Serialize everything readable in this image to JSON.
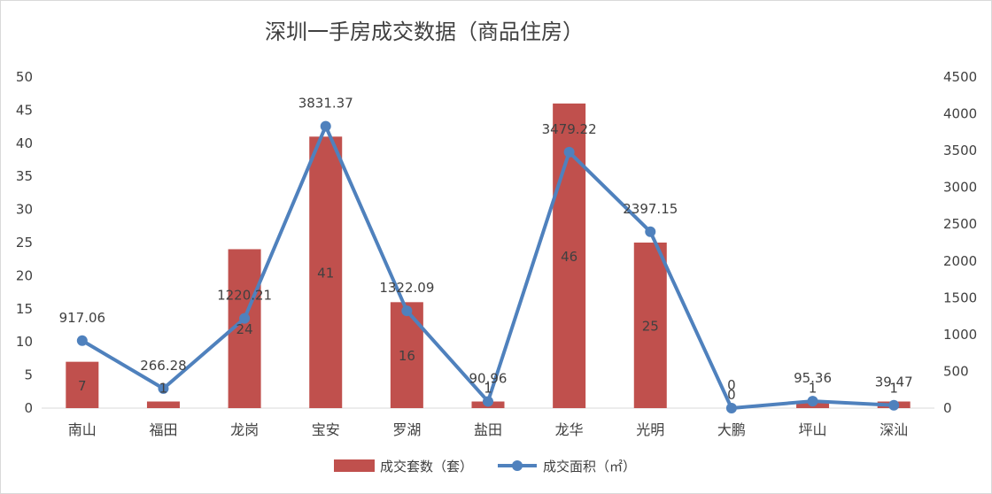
{
  "chart_data": {
    "type": "bar",
    "title": "深圳一手房成交数据（商品住房）",
    "categories": [
      "南山",
      "福田",
      "龙岗",
      "宝安",
      "罗湖",
      "盐田",
      "龙华",
      "光明",
      "大鹏",
      "坪山",
      "深汕"
    ],
    "series": [
      {
        "name": "成交套数（套）",
        "type": "bar",
        "axis": "left",
        "color": "#c0504d",
        "values": [
          7,
          1,
          24,
          41,
          16,
          1,
          46,
          25,
          0,
          1,
          1
        ],
        "labels": [
          "7",
          "1",
          "24",
          "41",
          "16",
          "1",
          "46",
          "25",
          "0",
          "1",
          "1"
        ]
      },
      {
        "name": "成交面积（㎡）",
        "type": "line",
        "axis": "right",
        "color": "#4f81bd",
        "values": [
          917.06,
          266.28,
          1220.21,
          3831.37,
          1322.09,
          90.96,
          3479.22,
          2397.15,
          0,
          95.36,
          39.47
        ],
        "labels": [
          "917.06",
          "266.28",
          "1220.21",
          "3831.37",
          "1322.09",
          "90.96",
          "3479.22",
          "2397.15",
          "0",
          "95.36",
          "39.47"
        ]
      }
    ],
    "y_left": {
      "min": 0,
      "max": 50,
      "step": 5,
      "ticks": [
        "0",
        "5",
        "10",
        "15",
        "20",
        "25",
        "30",
        "35",
        "40",
        "45",
        "50"
      ]
    },
    "y_right": {
      "min": 0,
      "max": 4500,
      "step": 500,
      "ticks": [
        "0",
        "500",
        "1000",
        "1500",
        "2000",
        "2500",
        "3000",
        "3500",
        "4000",
        "4500"
      ]
    },
    "grid": false,
    "legend": "bottom"
  }
}
